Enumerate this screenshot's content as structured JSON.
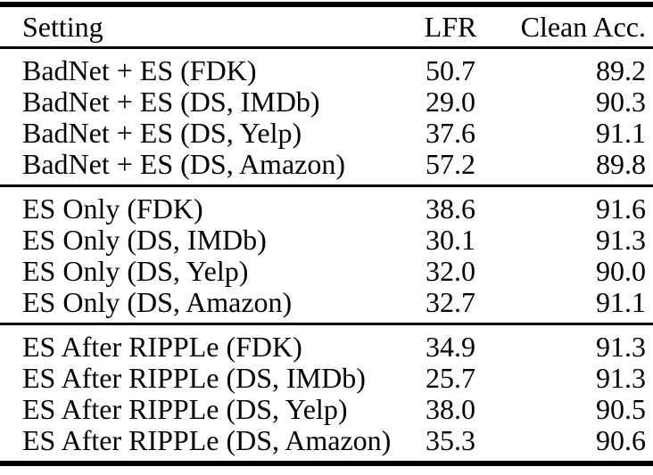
{
  "colors": {
    "background": "#ffffff",
    "text": "#000000",
    "rule": "#000000"
  },
  "table": {
    "header": {
      "setting": "Setting",
      "lfr": "LFR",
      "clean_acc": "Clean Acc."
    },
    "groups": [
      {
        "rows": [
          {
            "setting": "BadNet + ES (FDK)",
            "lfr": "50.7",
            "clean_acc": "89.2"
          },
          {
            "setting": "BadNet + ES (DS, IMDb)",
            "lfr": "29.0",
            "clean_acc": "90.3"
          },
          {
            "setting": "BadNet + ES (DS, Yelp)",
            "lfr": "37.6",
            "clean_acc": "91.1"
          },
          {
            "setting": "BadNet + ES (DS, Amazon)",
            "lfr": "57.2",
            "clean_acc": "89.8"
          }
        ]
      },
      {
        "rows": [
          {
            "setting": "ES Only (FDK)",
            "lfr": "38.6",
            "clean_acc": "91.6"
          },
          {
            "setting": "ES Only (DS, IMDb)",
            "lfr": "30.1",
            "clean_acc": "91.3"
          },
          {
            "setting": "ES Only (DS, Yelp)",
            "lfr": "32.0",
            "clean_acc": "90.0"
          },
          {
            "setting": "ES Only (DS, Amazon)",
            "lfr": "32.7",
            "clean_acc": "91.1"
          }
        ]
      },
      {
        "rows": [
          {
            "setting": "ES After RIPPLe (FDK)",
            "lfr": "34.9",
            "clean_acc": "91.3"
          },
          {
            "setting": "ES After RIPPLe (DS, IMDb)",
            "lfr": "25.7",
            "clean_acc": "91.3"
          },
          {
            "setting": "ES After RIPPLe (DS, Yelp)",
            "lfr": "38.0",
            "clean_acc": "90.5"
          },
          {
            "setting": "ES After RIPPLe (DS, Amazon)",
            "lfr": "35.3",
            "clean_acc": "90.6"
          }
        ]
      }
    ]
  },
  "chart_data": {
    "type": "table",
    "title": "",
    "columns": [
      "Setting",
      "LFR",
      "Clean Acc."
    ],
    "rows": [
      [
        "BadNet + ES (FDK)",
        50.7,
        89.2
      ],
      [
        "BadNet + ES (DS, IMDb)",
        29.0,
        90.3
      ],
      [
        "BadNet + ES (DS, Yelp)",
        37.6,
        91.1
      ],
      [
        "BadNet + ES (DS, Amazon)",
        57.2,
        89.8
      ],
      [
        "ES Only (FDK)",
        38.6,
        91.6
      ],
      [
        "ES Only (DS, IMDb)",
        30.1,
        91.3
      ],
      [
        "ES Only (DS, Yelp)",
        32.0,
        90.0
      ],
      [
        "ES Only (DS, Amazon)",
        32.7,
        91.1
      ],
      [
        "ES After RIPPLe (FDK)",
        34.9,
        91.3
      ],
      [
        "ES After RIPPLe (DS, IMDb)",
        25.7,
        91.3
      ],
      [
        "ES After RIPPLe (DS, Yelp)",
        38.0,
        90.5
      ],
      [
        "ES After RIPPLe (DS, Amazon)",
        35.3,
        90.6
      ]
    ]
  }
}
